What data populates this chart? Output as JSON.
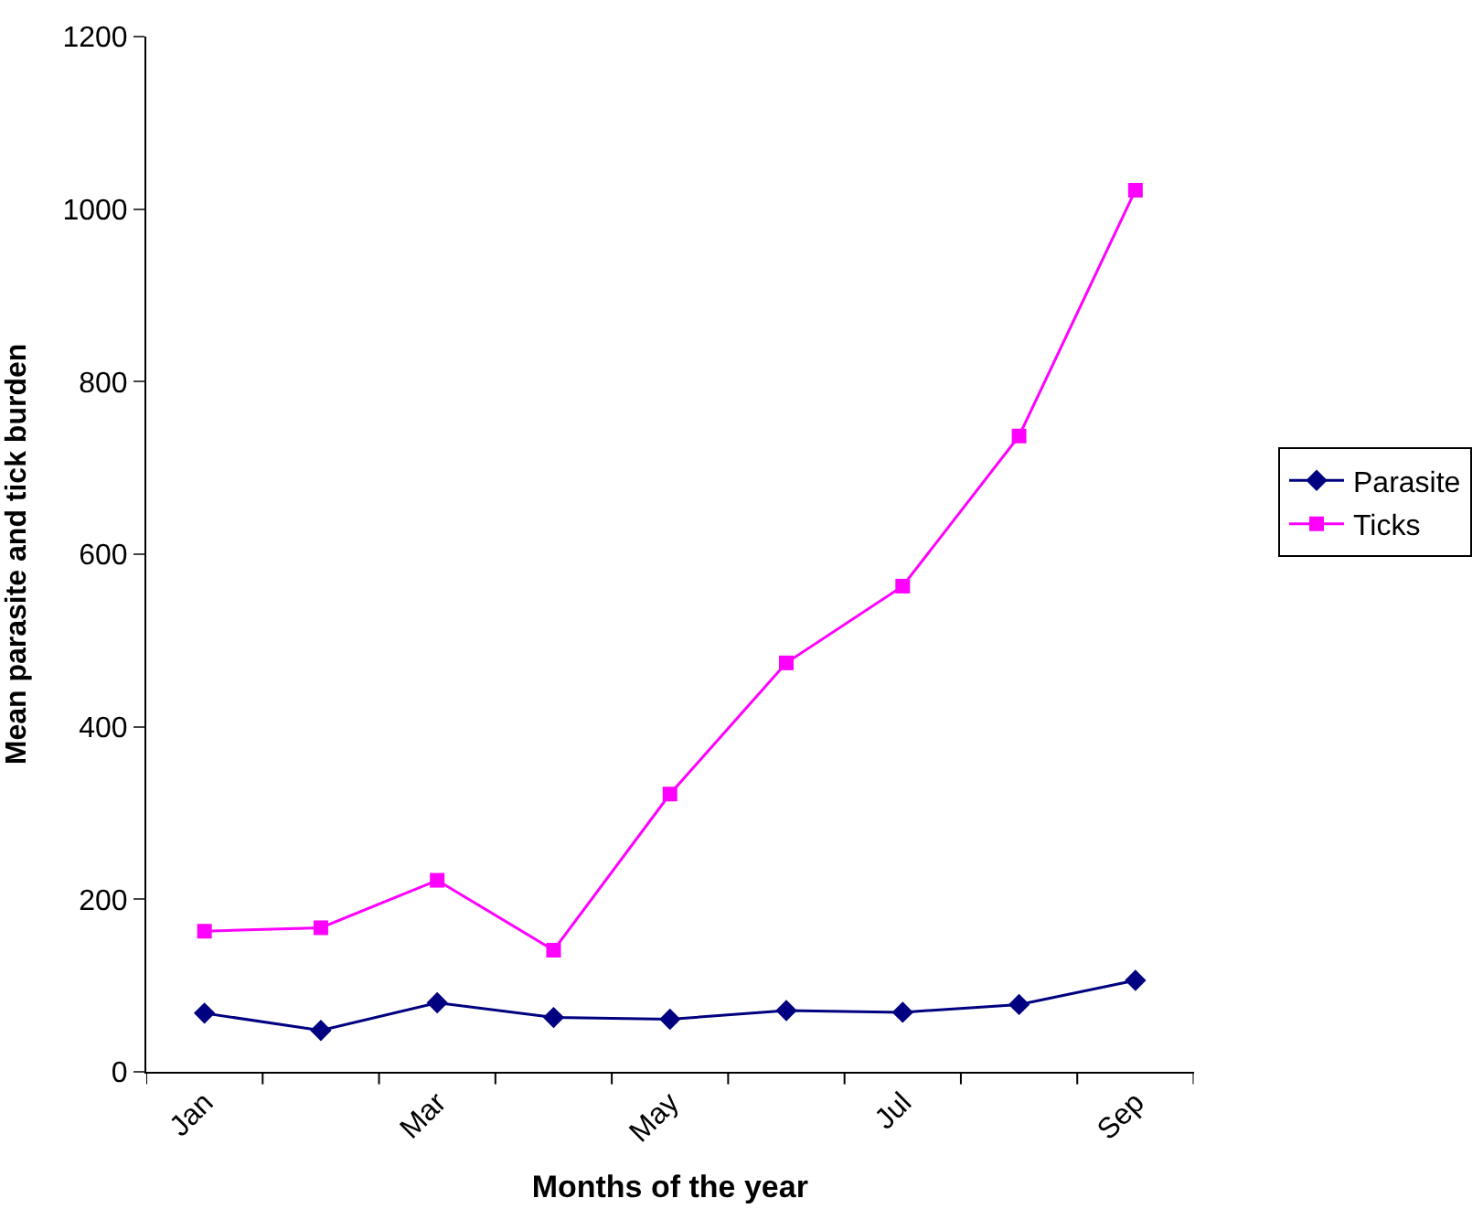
{
  "chart_data": {
    "type": "line",
    "xlabel": "Months of the year",
    "ylabel": "Mean parasite and tick burden",
    "categories": [
      "Jan",
      null,
      "Mar",
      null,
      "May",
      null,
      "Jul",
      null,
      "Sep"
    ],
    "series": [
      {
        "name": "Parasite",
        "color": "#000080",
        "marker": "diamond",
        "values": [
          68,
          48,
          80,
          63,
          61,
          71,
          69,
          78,
          106
        ]
      },
      {
        "name": "Ticks",
        "color": "#ff00ff",
        "marker": "square",
        "values": [
          163,
          167,
          222,
          141,
          322,
          474,
          563,
          737,
          1022
        ]
      }
    ],
    "ylim": [
      0,
      1200
    ],
    "yticks": [
      0,
      200,
      400,
      600,
      800,
      1000,
      1200
    ],
    "legend": "right",
    "line_style": "solid"
  }
}
